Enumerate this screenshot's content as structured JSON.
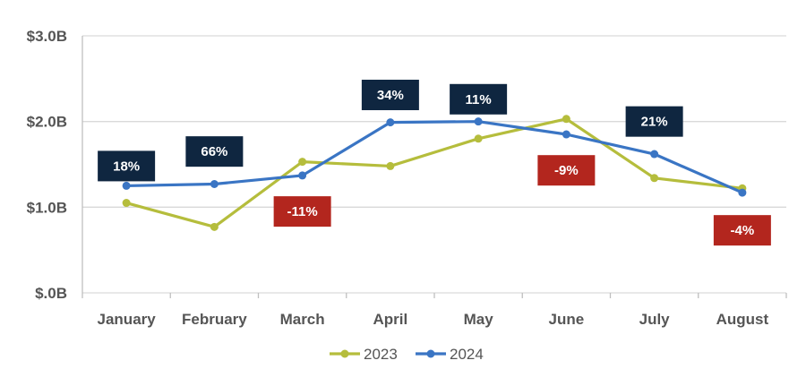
{
  "chart_data": {
    "type": "line",
    "categories": [
      "January",
      "February",
      "March",
      "April",
      "May",
      "June",
      "July",
      "August"
    ],
    "y_ticks": [
      "$.0B",
      "$1.0B",
      "$2.0B",
      "$3.0B"
    ],
    "y_tick_values": [
      0,
      1,
      2,
      3
    ],
    "ylim": [
      0,
      3
    ],
    "grid": true,
    "legend_position": "bottom",
    "series": [
      {
        "name": "2023",
        "color": "#b5bd3c",
        "values": [
          1.05,
          0.77,
          1.53,
          1.48,
          1.8,
          2.03,
          1.34,
          1.22
        ]
      },
      {
        "name": "2024",
        "color": "#3a75c4",
        "values": [
          1.25,
          1.27,
          1.37,
          1.99,
          2.0,
          1.85,
          1.62,
          1.17
        ]
      }
    ],
    "annotations": [
      {
        "category": "January",
        "label": "18%",
        "value": 1.48,
        "kind": "positive"
      },
      {
        "category": "February",
        "label": "66%",
        "value": 1.65,
        "kind": "positive"
      },
      {
        "category": "March",
        "label": "-11%",
        "value": 0.95,
        "kind": "negative"
      },
      {
        "category": "April",
        "label": "34%",
        "value": 2.31,
        "kind": "positive"
      },
      {
        "category": "May",
        "label": "11%",
        "value": 2.26,
        "kind": "positive"
      },
      {
        "category": "June",
        "label": "-9%",
        "value": 1.43,
        "kind": "negative"
      },
      {
        "category": "July",
        "label": "21%",
        "value": 2.0,
        "kind": "positive"
      },
      {
        "category": "August",
        "label": "-4%",
        "value": 0.73,
        "kind": "negative"
      }
    ],
    "colors": {
      "positive": "#0f2640",
      "negative": "#b3261e",
      "grid": "#d9d9d9",
      "axis": "#bfbfbf"
    }
  }
}
